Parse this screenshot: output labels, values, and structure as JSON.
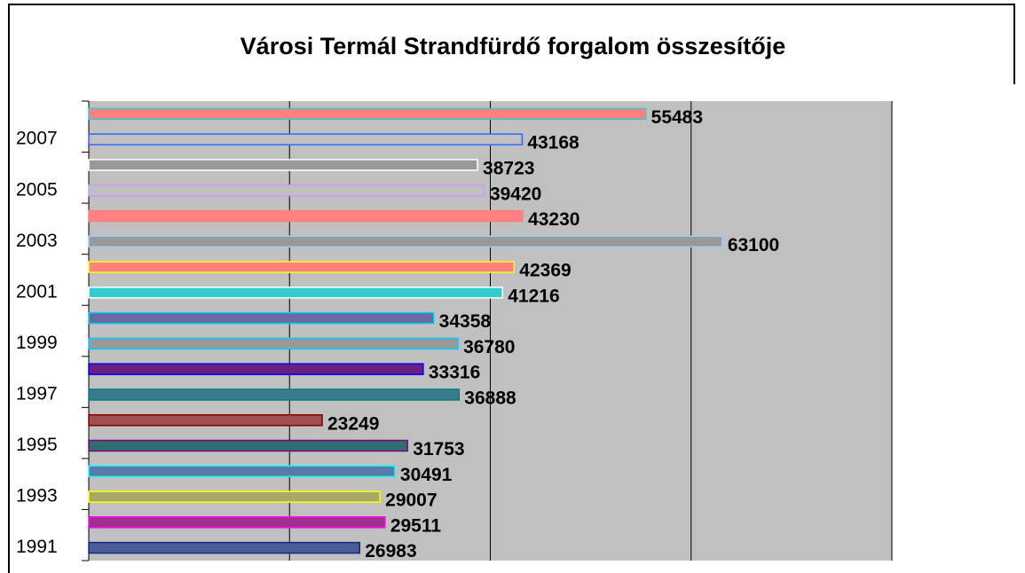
{
  "chart_data": {
    "type": "bar",
    "orientation": "horizontal",
    "title": "Városi Termál Strandfürdő forgalom összesítője",
    "categories": [
      "1991",
      null,
      "1993",
      null,
      "1995",
      null,
      "1997",
      null,
      "1999",
      null,
      "2001",
      null,
      "2003",
      null,
      "2005",
      null,
      "2007",
      null
    ],
    "values": [
      26983,
      29511,
      29007,
      30491,
      31753,
      23249,
      36888,
      33316,
      36780,
      34358,
      41216,
      42369,
      63100,
      43230,
      39420,
      38723,
      43168,
      55483
    ],
    "colors": [
      "#4a5a9a",
      "#a0308a",
      "#a8a868",
      "#5a7aa8",
      "#2e6e6e",
      "#a05050",
      "#3a7a8a",
      "#6a2080",
      "#999999",
      "#6a6aa0",
      "#33cccc",
      "#ff8080",
      "#999999",
      "#ff8080",
      "#c0c0c0",
      "#999999",
      "#c0c0c0",
      "#ff8080"
    ],
    "edge_colors": [
      "#1a2a7a",
      "#ff00ff",
      "#ffff00",
      "#00ffff",
      "#800080",
      "#800000",
      "#008080",
      "#0000ff",
      "#00ccff",
      "#00ccff",
      "#ffffff",
      "#ffff00",
      "#99ccff",
      "#ff8080",
      "#cc99ff",
      "#ffffff",
      "#3366ff",
      "#33cccc"
    ],
    "xlim": [
      0,
      80000
    ],
    "xticks": [
      0,
      20000,
      40000,
      60000,
      80000
    ],
    "grid": true,
    "plot_background": "#c0c0c0"
  }
}
